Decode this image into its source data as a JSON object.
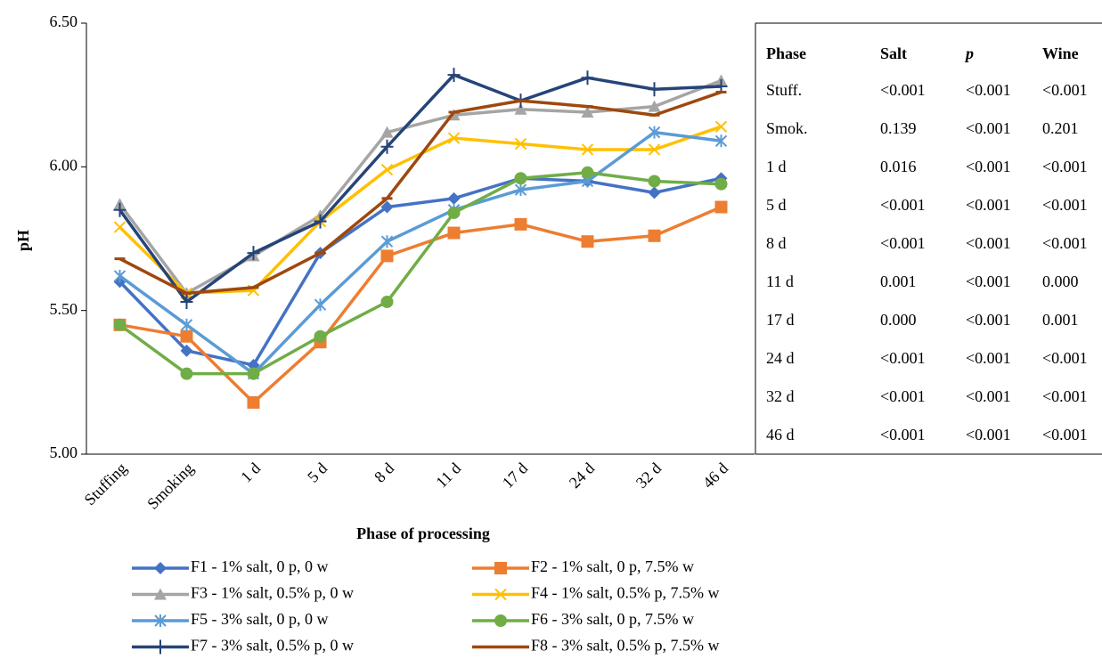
{
  "chart_data": {
    "type": "line",
    "x_label": "Phase of processing",
    "y_label": "pH",
    "categories": [
      "Stuffing",
      "Smoking",
      "1 d",
      "5 d",
      "8 d",
      "11 d",
      "17 d",
      "24 d",
      "32 d",
      "46 d"
    ],
    "ylim": [
      5.0,
      6.5
    ],
    "yticks": [
      {
        "value": 5.0,
        "label": "5.00"
      },
      {
        "value": 5.5,
        "label": "5.50"
      },
      {
        "value": 6.0,
        "label": "6.00"
      },
      {
        "value": 6.5,
        "label": "6.50"
      }
    ],
    "grid": false,
    "series": [
      {
        "name": "F1 - 1% salt, 0 p, 0 w",
        "color": "#4472c4",
        "marker": "diamond",
        "values": [
          5.6,
          5.36,
          5.31,
          5.7,
          5.86,
          5.89,
          5.96,
          5.95,
          5.91,
          5.96
        ]
      },
      {
        "name": "F2 - 1% salt, 0 p, 7.5% w",
        "color": "#ed7d31",
        "marker": "square",
        "values": [
          5.45,
          5.41,
          5.18,
          5.39,
          5.69,
          5.77,
          5.8,
          5.74,
          5.76,
          5.86
        ]
      },
      {
        "name": "F3 - 1% salt, 0.5% p, 0 w",
        "color": "#a5a5a5",
        "marker": "triangle",
        "values": [
          5.87,
          5.56,
          5.69,
          5.83,
          6.12,
          6.18,
          6.2,
          6.19,
          6.21,
          6.3
        ]
      },
      {
        "name": "F4 - 1% salt, 0.5% p, 7.5% w",
        "color": "#ffc000",
        "marker": "x",
        "values": [
          5.79,
          5.56,
          5.57,
          5.81,
          5.99,
          6.1,
          6.08,
          6.06,
          6.06,
          6.14
        ]
      },
      {
        "name": "F5 - 3% salt, 0 p, 0 w",
        "color": "#5b9bd5",
        "marker": "asterisk",
        "values": [
          5.62,
          5.45,
          5.28,
          5.52,
          5.74,
          5.85,
          5.92,
          5.95,
          6.12,
          6.09
        ]
      },
      {
        "name": "F6 - 3% salt, 0 p, 7.5% w",
        "color": "#70ad47",
        "marker": "circle",
        "values": [
          5.45,
          5.28,
          5.28,
          5.41,
          5.53,
          5.84,
          5.96,
          5.98,
          5.95,
          5.94
        ]
      },
      {
        "name": "F7 - 3% salt, 0.5% p, 0 w",
        "color": "#264478",
        "marker": "plus",
        "values": [
          5.85,
          5.53,
          5.7,
          5.81,
          6.07,
          6.32,
          6.23,
          6.31,
          6.27,
          6.28
        ]
      },
      {
        "name": "F8 - 3% salt, 0.5% p, 7.5% w",
        "color": "#9e480e",
        "marker": "dash",
        "values": [
          5.68,
          5.56,
          5.58,
          5.7,
          5.89,
          6.19,
          6.23,
          6.21,
          6.18,
          6.26
        ]
      }
    ]
  },
  "table": {
    "columns": [
      "Phase",
      "Salt",
      "p",
      "Wine"
    ],
    "rows": [
      [
        "Stuff.",
        "<0.001",
        "<0.001",
        "<0.001"
      ],
      [
        "Smok.",
        "0.139",
        "<0.001",
        "0.201"
      ],
      [
        "1 d",
        "0.016",
        "<0.001",
        "<0.001"
      ],
      [
        "5 d",
        "<0.001",
        "<0.001",
        "<0.001"
      ],
      [
        "8 d",
        "<0.001",
        "<0.001",
        "<0.001"
      ],
      [
        "11 d",
        "0.001",
        "<0.001",
        "0.000"
      ],
      [
        "17 d",
        "0.000",
        "<0.001",
        "0.001"
      ],
      [
        "24 d",
        "<0.001",
        "<0.001",
        "<0.001"
      ],
      [
        "32 d",
        "<0.001",
        "<0.001",
        "<0.001"
      ],
      [
        "46 d",
        "<0.001",
        "<0.001",
        "<0.001"
      ]
    ]
  }
}
